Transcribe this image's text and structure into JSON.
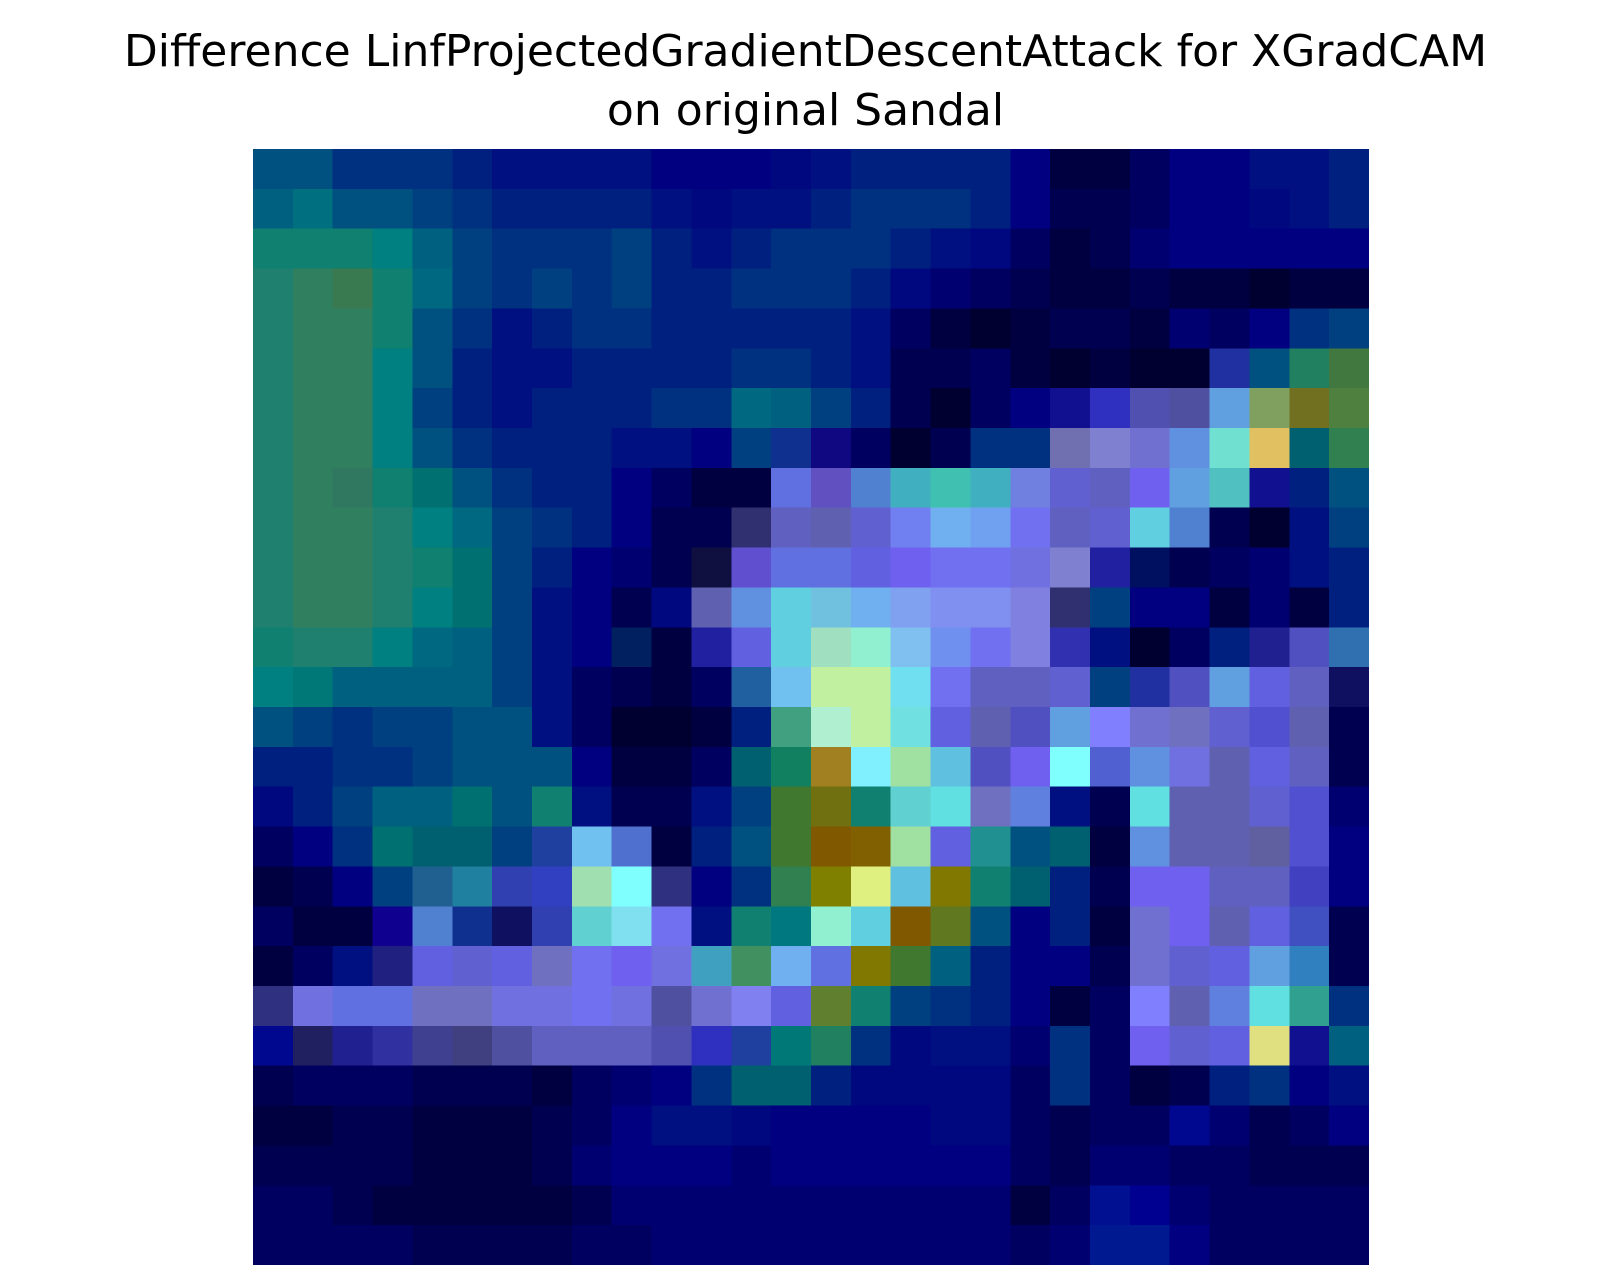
{
  "chart_data": {
    "type": "heatmap",
    "title_lines": [
      "Difference LinfProjectedGradientDescentAttack for XGradCAM",
      "on original Sandal"
    ],
    "xlabel": "",
    "ylabel": "",
    "axes_visible": false,
    "grid": false,
    "legend": "none",
    "rows": 28,
    "cols": 28,
    "cells": [
      [
        "#005080",
        "#005080",
        "#003080",
        "#003080",
        "#003080",
        "#002080",
        "#001080",
        "#001080",
        "#001080",
        "#001080",
        "#000080",
        "#000080",
        "#000080",
        "#000880",
        "#001080",
        "#002080",
        "#002080",
        "#002080",
        "#002080",
        "#000080",
        "#000040",
        "#000040",
        "#000060",
        "#000080",
        "#000080",
        "#001080",
        "#001080",
        "#002080"
      ],
      [
        "#006080",
        "#007080",
        "#005080",
        "#005080",
        "#004080",
        "#003080",
        "#002080",
        "#002080",
        "#002080",
        "#002080",
        "#001080",
        "#000880",
        "#001080",
        "#001080",
        "#002080",
        "#003080",
        "#003080",
        "#003080",
        "#002080",
        "#000080",
        "#000050",
        "#000050",
        "#000060",
        "#000080",
        "#000080",
        "#000880",
        "#001080",
        "#002080"
      ],
      [
        "#108070",
        "#108070",
        "#108070",
        "#008080",
        "#006080",
        "#004080",
        "#003080",
        "#003080",
        "#003080",
        "#004080",
        "#002080",
        "#001080",
        "#002080",
        "#003080",
        "#003080",
        "#003080",
        "#002080",
        "#001080",
        "#000880",
        "#000060",
        "#000040",
        "#000050",
        "#000070",
        "#000080",
        "#000080",
        "#000080",
        "#000080",
        "#000080"
      ],
      [
        "#208070",
        "#308060",
        "#3a7a50",
        "#108070",
        "#006880",
        "#004080",
        "#003080",
        "#004080",
        "#003080",
        "#004080",
        "#002080",
        "#002080",
        "#003080",
        "#003080",
        "#003080",
        "#002080",
        "#000880",
        "#000070",
        "#000060",
        "#000050",
        "#000040",
        "#000040",
        "#000050",
        "#000040",
        "#000040",
        "#000030",
        "#000040",
        "#000040"
      ],
      [
        "#208070",
        "#308060",
        "#308060",
        "#108070",
        "#005080",
        "#003080",
        "#001080",
        "#002080",
        "#003080",
        "#003080",
        "#002080",
        "#002080",
        "#002080",
        "#002080",
        "#002080",
        "#001080",
        "#000060",
        "#000040",
        "#000030",
        "#000040",
        "#000050",
        "#000050",
        "#000040",
        "#000070",
        "#000060",
        "#000080",
        "#003080",
        "#004080"
      ],
      [
        "#208070",
        "#308060",
        "#308060",
        "#008080",
        "#005080",
        "#002080",
        "#001080",
        "#001080",
        "#002080",
        "#002080",
        "#002080",
        "#002080",
        "#003080",
        "#003080",
        "#002080",
        "#001080",
        "#000050",
        "#000050",
        "#000060",
        "#000040",
        "#000030",
        "#000040",
        "#000030",
        "#000030",
        "#2030a0",
        "#005080",
        "#208060",
        "#407840"
      ],
      [
        "#208070",
        "#308060",
        "#308060",
        "#008080",
        "#004080",
        "#002080",
        "#001080",
        "#002080",
        "#002080",
        "#002080",
        "#003080",
        "#003080",
        "#006880",
        "#006080",
        "#004080",
        "#002080",
        "#000050",
        "#000030",
        "#000060",
        "#000080",
        "#101090",
        "#3030c0",
        "#5050b0",
        "#5050a0",
        "#60a0e0",
        "#80a060",
        "#707020",
        "#508040"
      ],
      [
        "#208070",
        "#308060",
        "#308060",
        "#008080",
        "#005080",
        "#003080",
        "#002080",
        "#002080",
        "#002080",
        "#001080",
        "#001080",
        "#000080",
        "#004080",
        "#103090",
        "#100880",
        "#000060",
        "#000030",
        "#000050",
        "#003080",
        "#003080",
        "#7070b0",
        "#8080d0",
        "#7070d0",
        "#6090e0",
        "#70e0d0",
        "#e0c060",
        "#006070",
        "#308050"
      ],
      [
        "#208070",
        "#308060",
        "#307860",
        "#108070",
        "#007070",
        "#005080",
        "#003080",
        "#002080",
        "#002080",
        "#000080",
        "#000060",
        "#000040",
        "#000040",
        "#6070e0",
        "#6050c0",
        "#5080d0",
        "#40b0c0",
        "#40c0b0",
        "#40b0c0",
        "#7080e0",
        "#6060d0",
        "#6060c0",
        "#7060f0",
        "#60a0e0",
        "#50c0c0",
        "#101090",
        "#002080",
        "#005080"
      ],
      [
        "#208070",
        "#308060",
        "#308060",
        "#208070",
        "#008080",
        "#006880",
        "#004080",
        "#003080",
        "#002080",
        "#000080",
        "#000050",
        "#000050",
        "#303070",
        "#6060c0",
        "#6060b0",
        "#6060d0",
        "#7080f0",
        "#70b0f0",
        "#70a0f0",
        "#7070f0",
        "#6060c0",
        "#6060d0",
        "#60d0e0",
        "#5080d0",
        "#000050",
        "#000030",
        "#001080",
        "#004080"
      ],
      [
        "#208070",
        "#308060",
        "#308060",
        "#208070",
        "#108070",
        "#007070",
        "#004080",
        "#002080",
        "#000080",
        "#000070",
        "#000050",
        "#101040",
        "#6050d0",
        "#6070e0",
        "#6070e0",
        "#6060e0",
        "#7060f0",
        "#7070f0",
        "#7070f0",
        "#7070e0",
        "#8080d0",
        "#2020a0",
        "#001060",
        "#000050",
        "#000060",
        "#000070",
        "#001080",
        "#002080"
      ],
      [
        "#208070",
        "#308060",
        "#308060",
        "#208070",
        "#008080",
        "#007070",
        "#004080",
        "#001080",
        "#000080",
        "#000050",
        "#000880",
        "#6060b0",
        "#6090e0",
        "#60d0e0",
        "#70c0e0",
        "#70b0f0",
        "#80a0f0",
        "#8090f0",
        "#8090f0",
        "#8080e0",
        "#303070",
        "#004080",
        "#000080",
        "#000080",
        "#000040",
        "#000070",
        "#000040",
        "#002080"
      ],
      [
        "#108070",
        "#208070",
        "#208070",
        "#008080",
        "#006880",
        "#006080",
        "#004080",
        "#001080",
        "#000080",
        "#002060",
        "#000040",
        "#2020a0",
        "#6060e0",
        "#60d0e0",
        "#a0e0c0",
        "#90f0d0",
        "#80c0f0",
        "#7090f0",
        "#7070f0",
        "#8080e0",
        "#3030b0",
        "#001080",
        "#000030",
        "#000060",
        "#002080",
        "#202090",
        "#5050c0",
        "#3070b0"
      ],
      [
        "#008080",
        "#007878",
        "#006080",
        "#006080",
        "#006080",
        "#006080",
        "#004080",
        "#001080",
        "#000060",
        "#000050",
        "#000040",
        "#000060",
        "#2060a0",
        "#70c0f0",
        "#c0f0a0",
        "#c0f0a0",
        "#70e0f0",
        "#7070f0",
        "#6060c0",
        "#6060c0",
        "#6060d0",
        "#004080",
        "#2030a0",
        "#5050c0",
        "#60a0e0",
        "#6060e0",
        "#6060c0",
        "#101060"
      ],
      [
        "#005080",
        "#004080",
        "#003080",
        "#004080",
        "#004080",
        "#005080",
        "#005080",
        "#001080",
        "#000060",
        "#000030",
        "#000030",
        "#000040",
        "#002080",
        "#40a080",
        "#b0f0d0",
        "#c0f0a0",
        "#70e0e0",
        "#6060e0",
        "#6060b0",
        "#5050c0",
        "#60a0e0",
        "#8080ff",
        "#7070d0",
        "#7070c0",
        "#6060d0",
        "#5050d0",
        "#6060b0",
        "#000050"
      ],
      [
        "#002080",
        "#002080",
        "#003080",
        "#003080",
        "#004080",
        "#005080",
        "#005080",
        "#005080",
        "#000080",
        "#000040",
        "#000040",
        "#000060",
        "#006070",
        "#108060",
        "#a08020",
        "#80f0ff",
        "#a0e0a0",
        "#60c0e0",
        "#5050c0",
        "#7060f0",
        "#80ffff",
        "#5060d0",
        "#6090e0",
        "#7070e0",
        "#6060b0",
        "#6060e0",
        "#6060c0",
        "#000050"
      ],
      [
        "#000880",
        "#002080",
        "#004080",
        "#006080",
        "#006080",
        "#007070",
        "#005080",
        "#108070",
        "#001080",
        "#000050",
        "#000050",
        "#001080",
        "#004080",
        "#407830",
        "#707010",
        "#108070",
        "#60d0d0",
        "#60e0e0",
        "#7070c0",
        "#6080e0",
        "#001080",
        "#000050",
        "#60e0e0",
        "#6060b0",
        "#6060b0",
        "#6060d0",
        "#5050d0",
        "#000070"
      ],
      [
        "#000060",
        "#000080",
        "#003080",
        "#007070",
        "#006070",
        "#006070",
        "#004080",
        "#2040a0",
        "#70c0f0",
        "#5070d0",
        "#000040",
        "#002080",
        "#005080",
        "#407830",
        "#805800",
        "#806000",
        "#a0e0a0",
        "#6060e0",
        "#209090",
        "#005080",
        "#006070",
        "#000040",
        "#6090e0",
        "#6060b0",
        "#6060b0",
        "#6060a0",
        "#5050d0",
        "#000080"
      ],
      [
        "#000040",
        "#000050",
        "#000080",
        "#004080",
        "#206090",
        "#2080a0",
        "#3040b0",
        "#3040c0",
        "#a0e0b0",
        "#80ffff",
        "#303080",
        "#000080",
        "#003080",
        "#308050",
        "#808000",
        "#e0f080",
        "#60c0e0",
        "#807800",
        "#108070",
        "#006070",
        "#002080",
        "#000050",
        "#7060f0",
        "#7060f0",
        "#6060c0",
        "#6060c0",
        "#4040c0",
        "#000080"
      ],
      [
        "#000060",
        "#000040",
        "#000040",
        "#100090",
        "#5080d0",
        "#103090",
        "#101060",
        "#3040b0",
        "#60d0d0",
        "#80e0f0",
        "#7070f0",
        "#001080",
        "#108070",
        "#007880",
        "#90f0d0",
        "#60d0e0",
        "#805800",
        "#607820",
        "#005080",
        "#000080",
        "#002080",
        "#000040",
        "#7070d0",
        "#7060f0",
        "#6060b0",
        "#6060e0",
        "#4050c0",
        "#000050"
      ],
      [
        "#000040",
        "#000060",
        "#001080",
        "#202080",
        "#6060e0",
        "#6060d0",
        "#6060e0",
        "#7070c0",
        "#7070f0",
        "#7060f0",
        "#7070e0",
        "#40a0c0",
        "#409060",
        "#70b0f0",
        "#6070e0",
        "#807800",
        "#407830",
        "#006080",
        "#002080",
        "#000080",
        "#000080",
        "#000050",
        "#7070d0",
        "#6060d0",
        "#6060e0",
        "#60a0e0",
        "#3080c0",
        "#000050"
      ],
      [
        "#303080",
        "#7070e0",
        "#6070e0",
        "#6070e0",
        "#7070c0",
        "#7070c0",
        "#7070e0",
        "#7070e0",
        "#7070f0",
        "#7070e0",
        "#5050a0",
        "#7070d0",
        "#8080f0",
        "#6060e0",
        "#608030",
        "#108070",
        "#004080",
        "#003080",
        "#002080",
        "#000080",
        "#000040",
        "#000060",
        "#8080ff",
        "#6060b0",
        "#6080e0",
        "#60e0e0",
        "#30a090",
        "#003080"
      ],
      [
        "#000890",
        "#202060",
        "#202090",
        "#3030a0",
        "#404090",
        "#404080",
        "#5050a0",
        "#6060c0",
        "#6060c0",
        "#6060c0",
        "#5050b0",
        "#3030c0",
        "#2040a0",
        "#007878",
        "#208060",
        "#003080",
        "#000880",
        "#001080",
        "#001080",
        "#000070",
        "#003080",
        "#000060",
        "#7060f0",
        "#6060d0",
        "#6060e0",
        "#e0e080",
        "#101090",
        "#006080"
      ],
      [
        "#000050",
        "#000060",
        "#000060",
        "#000060",
        "#000050",
        "#000050",
        "#000050",
        "#000040",
        "#000060",
        "#000070",
        "#000080",
        "#003080",
        "#006070",
        "#006070",
        "#002080",
        "#000880",
        "#000880",
        "#000880",
        "#000880",
        "#000060",
        "#003080",
        "#000060",
        "#000040",
        "#000050",
        "#002080",
        "#003080",
        "#000080",
        "#001080"
      ],
      [
        "#000040",
        "#000040",
        "#000050",
        "#000050",
        "#000040",
        "#000040",
        "#000040",
        "#000050",
        "#000060",
        "#000080",
        "#001080",
        "#001080",
        "#000880",
        "#000080",
        "#000080",
        "#000080",
        "#000080",
        "#000880",
        "#000880",
        "#000060",
        "#000050",
        "#000060",
        "#000060",
        "#000890",
        "#000070",
        "#000050",
        "#000060",
        "#000080"
      ],
      [
        "#000050",
        "#000050",
        "#000050",
        "#000050",
        "#000040",
        "#000040",
        "#000040",
        "#000050",
        "#000070",
        "#000080",
        "#000080",
        "#000080",
        "#000070",
        "#000080",
        "#000080",
        "#000080",
        "#000080",
        "#000080",
        "#000080",
        "#000060",
        "#000050",
        "#000070",
        "#000070",
        "#000060",
        "#000060",
        "#000050",
        "#000050",
        "#000050"
      ],
      [
        "#000060",
        "#000060",
        "#000050",
        "#000040",
        "#000040",
        "#000040",
        "#000040",
        "#000040",
        "#000050",
        "#000070",
        "#000070",
        "#000070",
        "#000070",
        "#000070",
        "#000070",
        "#000070",
        "#000070",
        "#000070",
        "#000070",
        "#000040",
        "#000060",
        "#001090",
        "#000090",
        "#000070",
        "#000060",
        "#000060",
        "#000060",
        "#000060"
      ],
      [
        "#000060",
        "#000060",
        "#000060",
        "#000060",
        "#000050",
        "#000050",
        "#000050",
        "#000050",
        "#000060",
        "#000060",
        "#000070",
        "#000070",
        "#000070",
        "#000070",
        "#000070",
        "#000070",
        "#000070",
        "#000070",
        "#000070",
        "#000060",
        "#000070",
        "#001890",
        "#001890",
        "#000080",
        "#000060",
        "#000060",
        "#000060",
        "#000060"
      ]
    ]
  }
}
